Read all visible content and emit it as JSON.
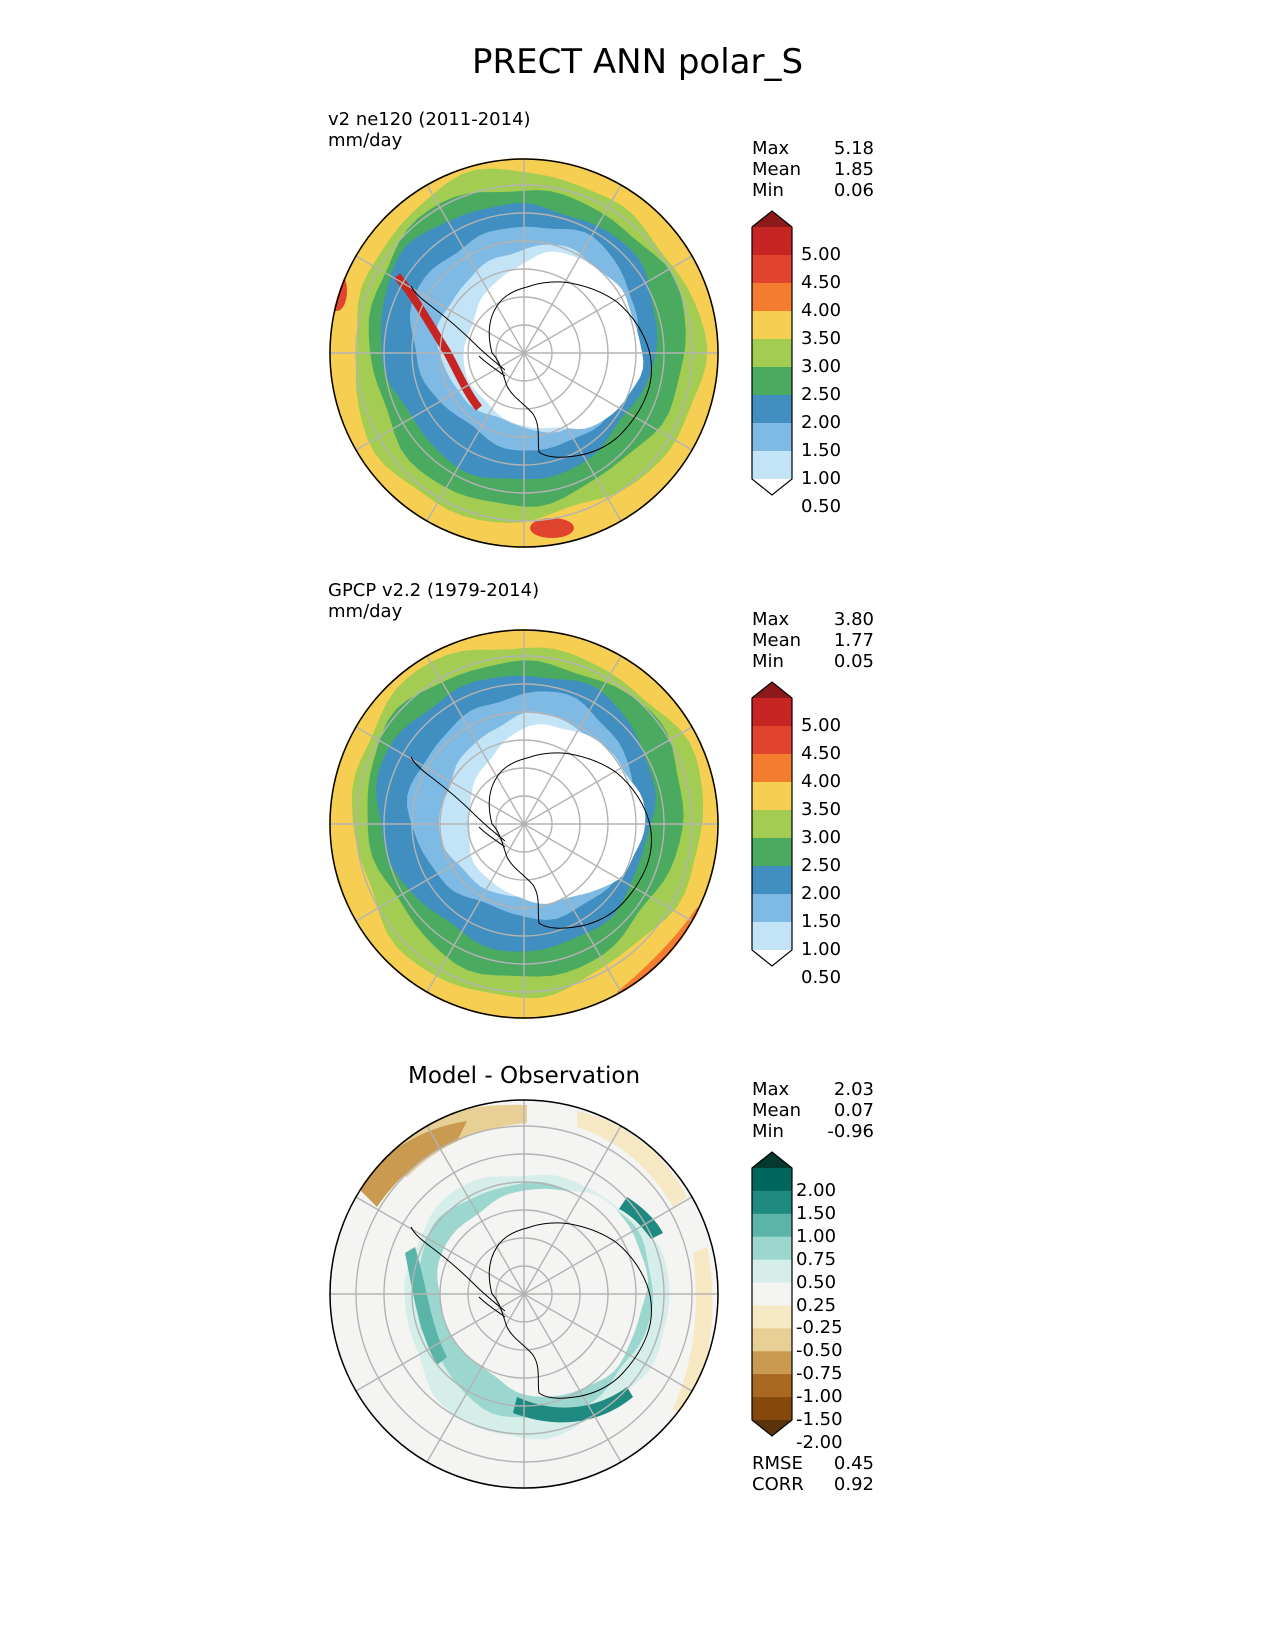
{
  "figure": {
    "title": "PRECT ANN polar_S"
  },
  "panels": [
    {
      "id": "test",
      "name_line": "v2 ne120 (2011-2014)",
      "units_line": "mm/day",
      "stats": {
        "max_label": "Max",
        "max": "5.18",
        "mean_label": "Mean",
        "mean": "1.85",
        "min_label": "Min",
        "min": "0.06"
      },
      "colorbar": {
        "levels": [
          "5.00",
          "4.50",
          "4.00",
          "3.50",
          "3.00",
          "2.50",
          "2.00",
          "1.50",
          "1.00",
          "0.50"
        ],
        "colors": [
          "#8c1a1a",
          "#c72424",
          "#e0442e",
          "#f47c2f",
          "#f6cf52",
          "#a2cd52",
          "#4aaa5f",
          "#418fc1",
          "#7fbae4",
          "#c3e4f6",
          "#ffffff"
        ]
      },
      "map_colors": {
        "outer": "#f6cf52",
        "ring2": "#a2cd52",
        "ring3": "#4aaa5f",
        "ring4": "#418fc1",
        "ring5": "#7fbae4",
        "ring6": "#c3e4f6",
        "ice": "#ffffff",
        "peak": "#e0442e"
      }
    },
    {
      "id": "reference",
      "name_line": "GPCP v2.2 (1979-2014)",
      "units_line": "mm/day",
      "stats": {
        "max_label": "Max",
        "max": "3.80",
        "mean_label": "Mean",
        "mean": "1.77",
        "min_label": "Min",
        "min": "0.05"
      },
      "colorbar": {
        "levels": [
          "5.00",
          "4.50",
          "4.00",
          "3.50",
          "3.00",
          "2.50",
          "2.00",
          "1.50",
          "1.00",
          "0.50"
        ],
        "colors": [
          "#8c1a1a",
          "#c72424",
          "#e0442e",
          "#f47c2f",
          "#f6cf52",
          "#a2cd52",
          "#4aaa5f",
          "#418fc1",
          "#7fbae4",
          "#c3e4f6",
          "#ffffff"
        ]
      },
      "map_colors": {
        "outer": "#f6cf52",
        "ring2": "#a2cd52",
        "ring3": "#4aaa5f",
        "ring4": "#418fc1",
        "ring5": "#7fbae4",
        "ring6": "#c3e4f6",
        "ice": "#ffffff",
        "peak": "#f47c2f"
      }
    },
    {
      "id": "difference",
      "title": "Model - Observation",
      "stats": {
        "max_label": "Max",
        "max": "2.03",
        "mean_label": "Mean",
        "mean": "0.07",
        "min_label": "Min",
        "min": "-0.96",
        "rmse_label": "RMSE",
        "rmse": "0.45",
        "corr_label": "CORR",
        "corr": "0.92"
      },
      "colorbar": {
        "levels": [
          "2.00",
          "1.50",
          "1.00",
          "0.75",
          "0.50",
          "0.25",
          "-0.25",
          "-0.50",
          "-0.75",
          "-1.00",
          "-1.50",
          "-2.00"
        ],
        "colors": [
          "#043a2e",
          "#01665e",
          "#1f8a80",
          "#5ab4a8",
          "#9bd7cf",
          "#d5eeea",
          "#f4f4f2",
          "#f6e8c3",
          "#e8cf95",
          "#c99a4f",
          "#a9681f",
          "#85490c",
          "#5a3308"
        ]
      },
      "map_colors": {
        "background": "#f4f4f2",
        "pos1": "#d5eeea",
        "pos2": "#9bd7cf",
        "pos3": "#5ab4a8",
        "pos4": "#1f8a80",
        "neg1": "#f6e8c3",
        "neg2": "#e8cf95",
        "neg3": "#c99a4f"
      }
    }
  ]
}
